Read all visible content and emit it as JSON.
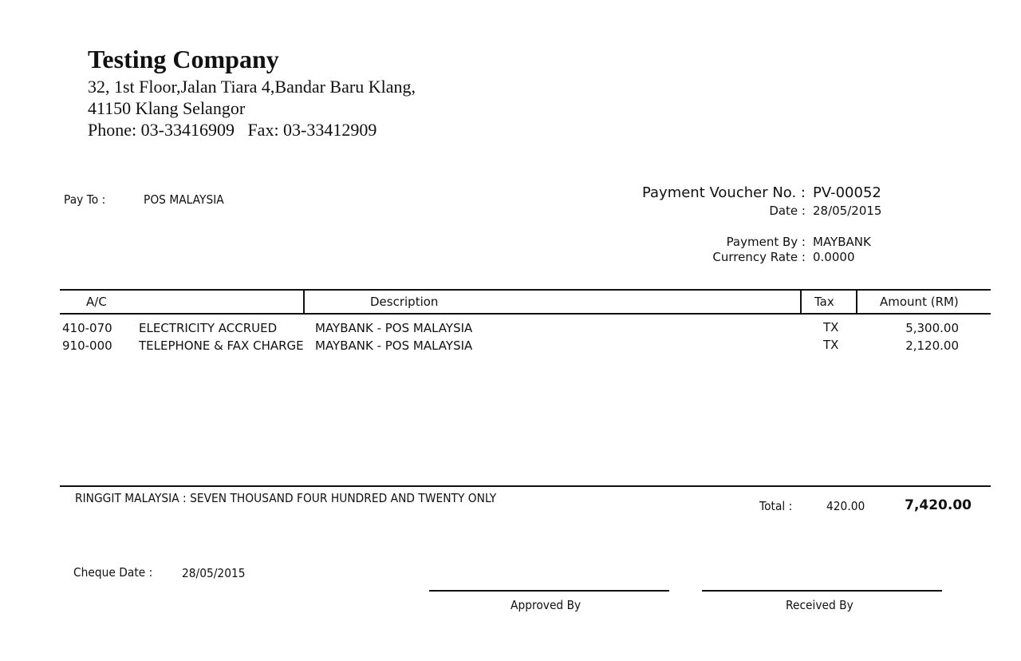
{
  "company": {
    "name": "Testing Company",
    "address1": "32, 1st Floor,Jalan Tiara 4,Bandar Baru Klang,",
    "address2": "41150 Klang Selangor",
    "phone": "Phone: 03-33416909   Fax: 03-33412909"
  },
  "pay_to": {
    "label": "Pay To :",
    "value": "POS MALAYSIA"
  },
  "voucher": {
    "no_label": "Payment Voucher No. :",
    "no": "PV-00052",
    "date_label": "Date :",
    "date": "28/05/2015",
    "payment_by_label": "Payment By :",
    "payment_by": "MAYBANK",
    "currency_rate_label": "Currency Rate :",
    "currency_rate": "0.0000"
  },
  "table": {
    "headers": {
      "ac": "A/C",
      "description": "Description",
      "tax": "Tax",
      "amount": "Amount (RM)"
    },
    "rows": [
      {
        "ac": "410-070",
        "account": "ELECTRICITY ACCRUED",
        "description": "MAYBANK - POS MALAYSIA",
        "tax": "TX",
        "amount": "5,300.00"
      },
      {
        "ac": "910-000",
        "account": "TELEPHONE & FAX CHARGE",
        "description": "MAYBANK - POS MALAYSIA",
        "tax": "TX",
        "amount": "2,120.00"
      }
    ]
  },
  "footer": {
    "amount_words": "RINGGIT MALAYSIA : SEVEN THOUSAND FOUR HUNDRED AND TWENTY ONLY",
    "total_label": "Total :",
    "total_tax": "420.00",
    "total_amount": "7,420.00",
    "cheque_date_label": "Cheque Date :",
    "cheque_date": "28/05/2015",
    "approved_by": "Approved By",
    "received_by": "Received By"
  }
}
